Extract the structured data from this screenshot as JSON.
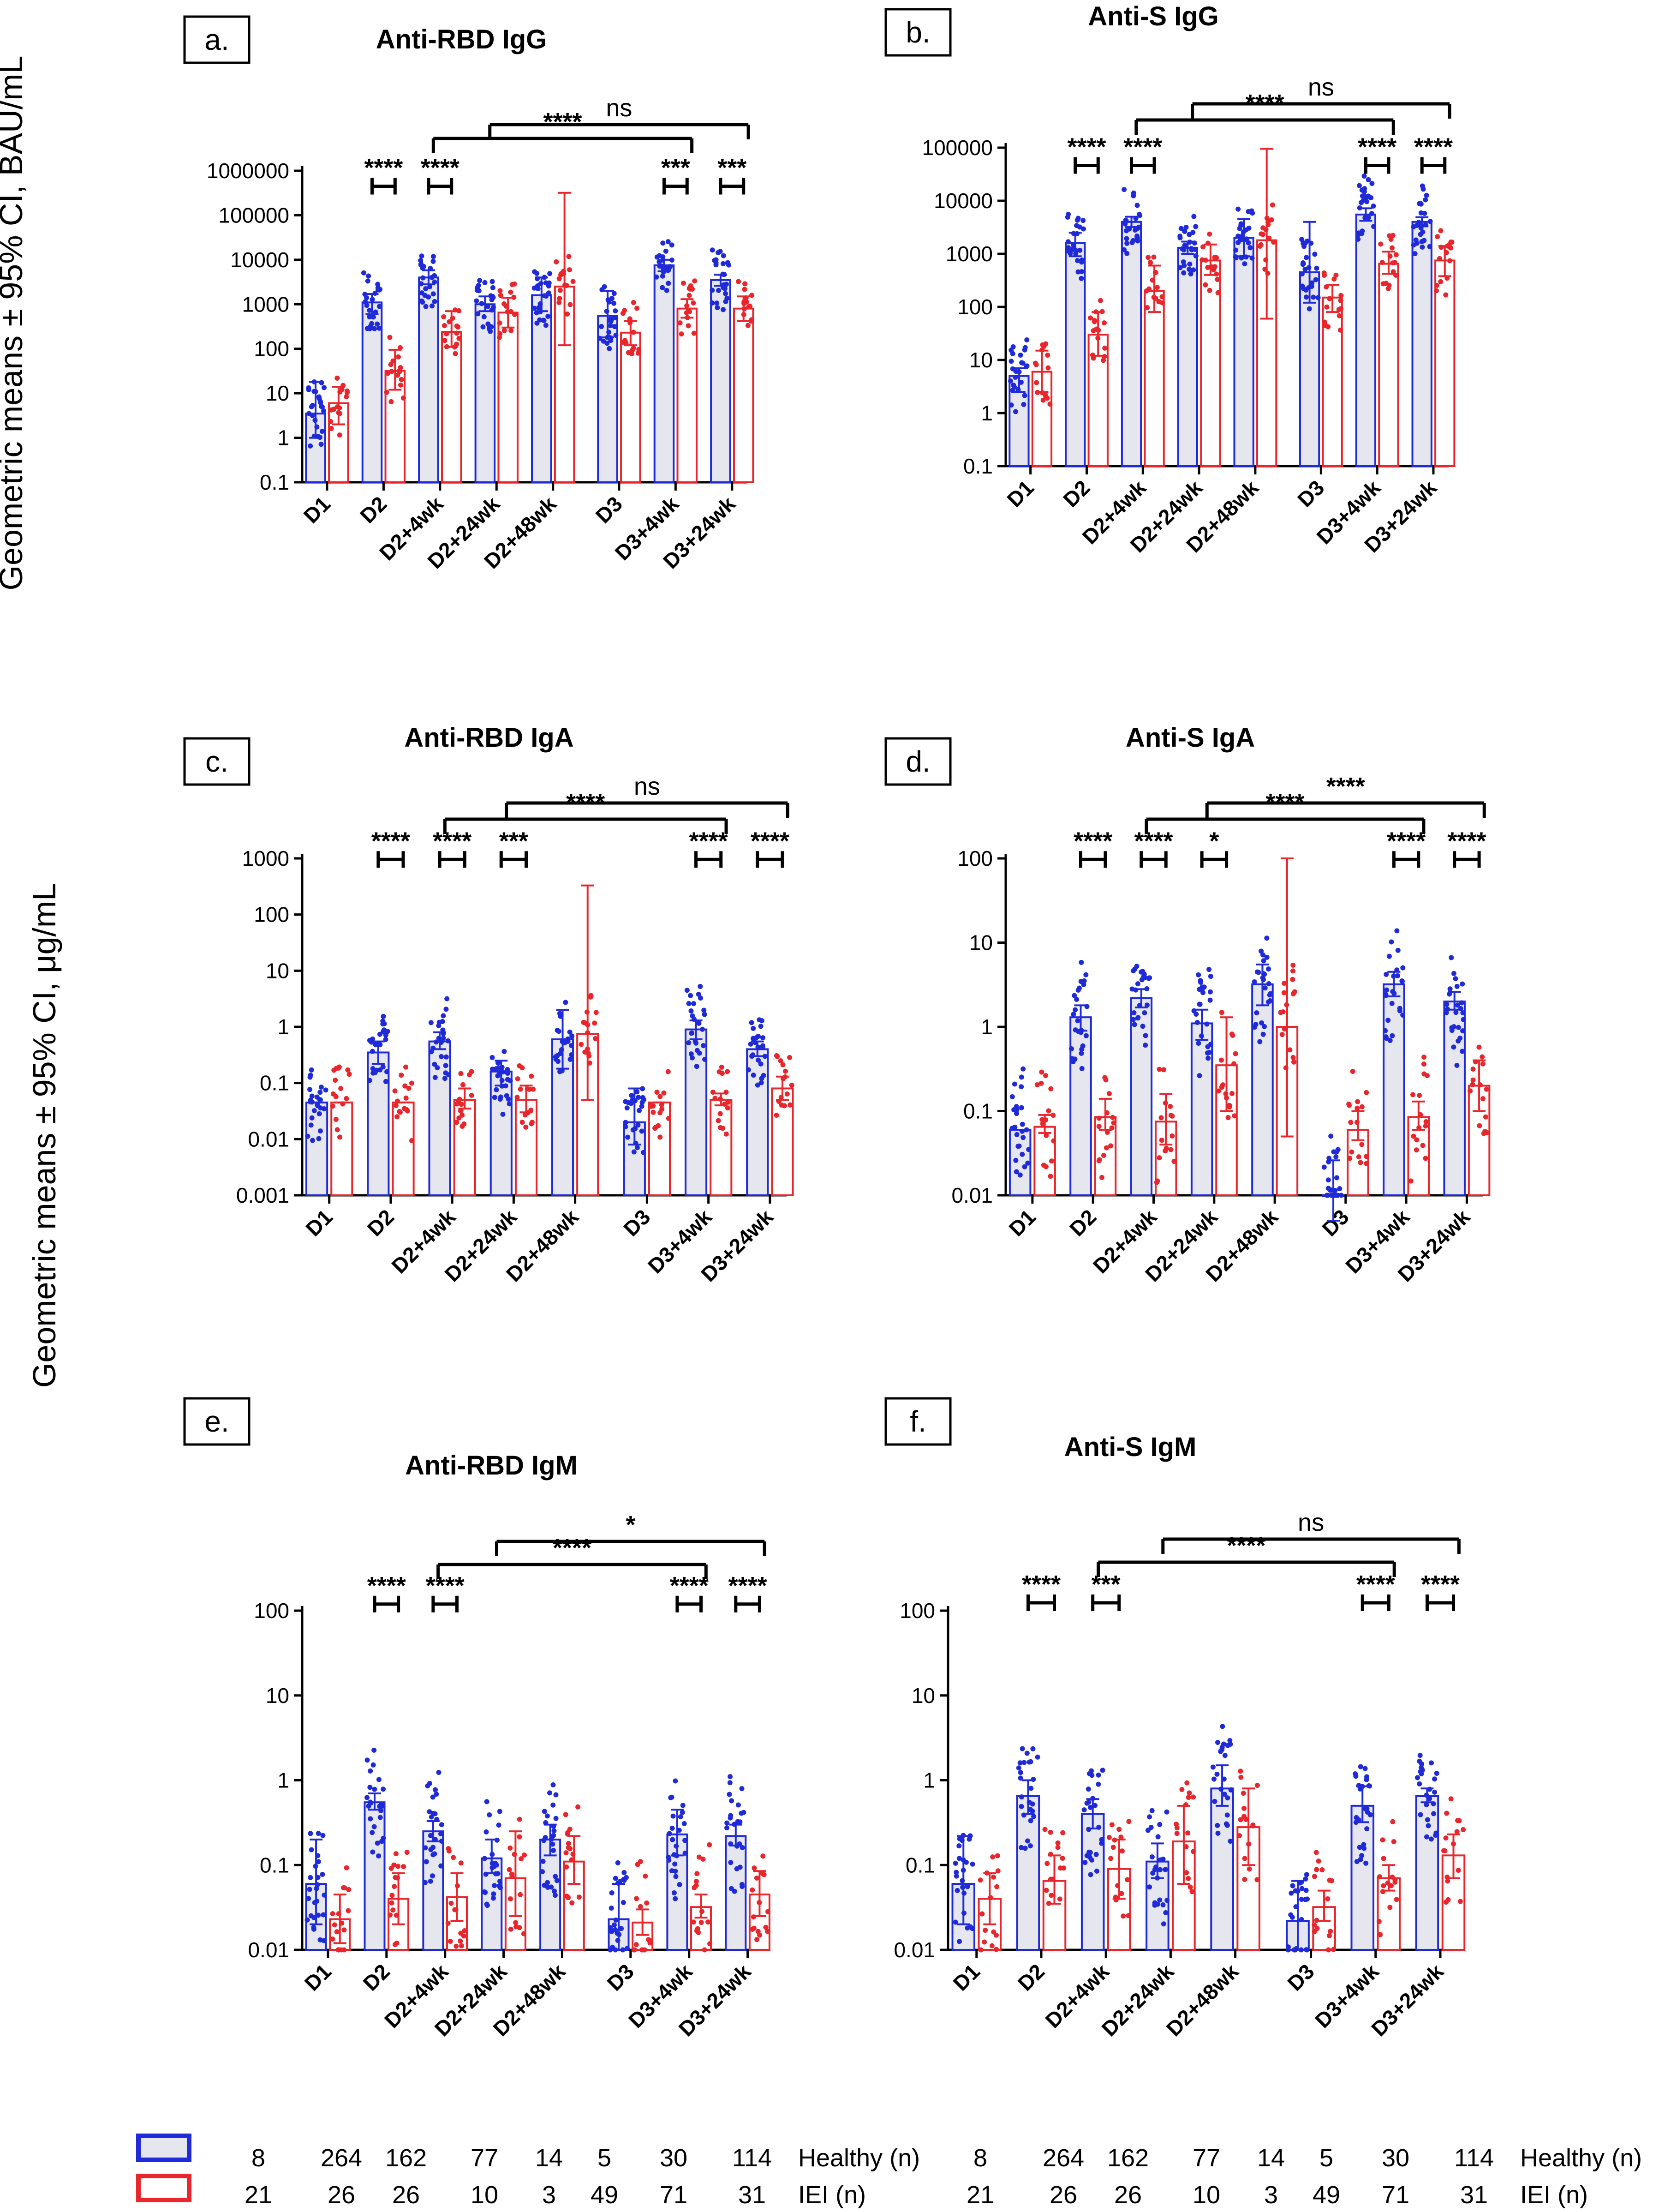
{
  "y_axis_labels": [
    "Geometric means ± 95% CI, BAU/mL",
    "Geometric means ± 95% CI, μg/mL"
  ],
  "colors": {
    "healthy": "#1f2ad8",
    "iei": "#e8262b",
    "healthy_fill": "#e6e6ee",
    "black": "#000000"
  },
  "legend": {
    "healthy_label": "Healthy (n)",
    "iei_label": "IEI (n)",
    "healthy_n": [
      "8",
      "264",
      "162",
      "77",
      "14",
      "5",
      "30",
      "114"
    ],
    "iei_n": [
      "21",
      "26",
      "26",
      "10",
      "3",
      "49",
      "71",
      "31"
    ]
  },
  "chart_data": [
    {
      "type": "bar",
      "panel": "a.",
      "title": "Anti-RBD IgG",
      "scale": "log",
      "ylim": [
        0.1,
        1000000
      ],
      "ticks": [
        "0.1",
        "1",
        "10",
        "100",
        "1000",
        "10000",
        "100000",
        "1000000"
      ],
      "categories": [
        "D1",
        "D2",
        "D2+4wk",
        "D2+24wk",
        "D2+48wk",
        "D3",
        "D3+4wk",
        "D3+24wk"
      ],
      "series": [
        {
          "name": "Healthy",
          "values": [
            3.5,
            1100,
            4000,
            1000,
            1600,
            550,
            7500,
            3500
          ],
          "ci_low": [
            1,
            600,
            2800,
            700,
            700,
            180,
            5500,
            2600
          ],
          "ci_high": [
            18,
            1700,
            5800,
            1500,
            4000,
            2000,
            10000,
            4600
          ]
        },
        {
          "name": "IEI",
          "values": [
            6,
            32,
            240,
            650,
            2500,
            230,
            800,
            800
          ],
          "ci_low": [
            2,
            12,
            110,
            300,
            120,
            120,
            500,
            420
          ],
          "ci_high": [
            14,
            95,
            700,
            1400,
            320000,
            420,
            1300,
            1500
          ]
        }
      ],
      "comparisons": [
        {
          "pair": [
            1,
            1
          ],
          "label": "****"
        },
        {
          "pair": [
            2,
            2
          ],
          "label": "****"
        },
        {
          "pair": [
            6,
            6
          ],
          "label": "***"
        },
        {
          "pair": [
            7,
            7
          ],
          "label": "***"
        }
      ],
      "long_comparisons": [
        {
          "from": 2,
          "to": 6,
          "label": "****"
        },
        {
          "from": 3,
          "to": 7,
          "label": "ns"
        }
      ]
    },
    {
      "type": "bar",
      "panel": "b.",
      "title": "Anti-S IgG",
      "scale": "log",
      "ylim": [
        0.1,
        100000
      ],
      "ticks": [
        "0.1",
        "1",
        "10",
        "100",
        "1000",
        "10000",
        "100000"
      ],
      "categories": [
        "D1",
        "D2",
        "D2+4wk",
        "D2+24wk",
        "D2+48wk",
        "D3",
        "D3+4wk",
        "D3+24wk"
      ],
      "series": [
        {
          "name": "Healthy",
          "values": [
            5,
            1600,
            4000,
            1300,
            2000,
            450,
            5500,
            4000
          ],
          "ci_low": [
            2.5,
            900,
            3200,
            1000,
            900,
            120,
            4200,
            3300
          ],
          "ci_high": [
            7,
            2500,
            5000,
            1700,
            4500,
            4000,
            7200,
            4900
          ]
        },
        {
          "name": "IEI",
          "values": [
            6,
            30,
            200,
            750,
            1800,
            150,
            650,
            750
          ],
          "ci_low": [
            2.5,
            12,
            80,
            400,
            60,
            80,
            420,
            380
          ],
          "ci_high": [
            15,
            80,
            600,
            1500,
            95000,
            260,
            1100,
            1400
          ]
        }
      ],
      "comparisons": [
        {
          "pair": [
            1,
            1
          ],
          "label": "****"
        },
        {
          "pair": [
            2,
            2
          ],
          "label": "****"
        },
        {
          "pair": [
            6,
            6
          ],
          "label": "****"
        },
        {
          "pair": [
            7,
            7
          ],
          "label": "****"
        }
      ],
      "long_comparisons": [
        {
          "from": 2,
          "to": 6,
          "label": "****"
        },
        {
          "from": 3,
          "to": 7,
          "label": "ns"
        }
      ]
    },
    {
      "type": "bar",
      "panel": "c.",
      "title": "Anti-RBD IgA",
      "scale": "log",
      "ylim": [
        0.001,
        1000
      ],
      "ticks": [
        "0.001",
        "0.01",
        "0.1",
        "1",
        "10",
        "100",
        "1000"
      ],
      "categories": [
        "D1",
        "D2",
        "D2+4wk",
        "D2+24wk",
        "D2+48wk",
        "D3",
        "D3+4wk",
        "D3+24wk"
      ],
      "series": [
        {
          "name": "Healthy",
          "values": [
            0.045,
            0.35,
            0.55,
            0.16,
            0.6,
            0.02,
            0.9,
            0.4
          ],
          "ci_low": [
            0.045,
            0.22,
            0.4,
            0.09,
            0.18,
            0.008,
            0.6,
            0.3
          ],
          "ci_high": [
            0.045,
            0.55,
            0.8,
            0.25,
            2,
            0.08,
            1.3,
            0.55
          ]
        },
        {
          "name": "IEI",
          "values": [
            0.045,
            0.045,
            0.05,
            0.05,
            0.75,
            0.045,
            0.05,
            0.08
          ],
          "ci_low": [
            0.045,
            0.045,
            0.035,
            0.03,
            0.05,
            0.045,
            0.04,
            0.05
          ],
          "ci_high": [
            0.045,
            0.045,
            0.08,
            0.09,
            330,
            0.045,
            0.065,
            0.13
          ]
        }
      ],
      "comparisons": [
        {
          "pair": [
            1,
            1
          ],
          "label": "****"
        },
        {
          "pair": [
            2,
            2
          ],
          "label": "****"
        },
        {
          "pair": [
            3,
            3
          ],
          "label": "***"
        },
        {
          "pair": [
            6,
            6
          ],
          "label": "****"
        },
        {
          "pair": [
            7,
            7
          ],
          "label": "****"
        }
      ],
      "long_comparisons": [
        {
          "from": 2,
          "to": 6,
          "label": "****"
        },
        {
          "from": 3,
          "to": 7,
          "label": "ns"
        }
      ]
    },
    {
      "type": "bar",
      "panel": "d.",
      "title": "Anti-S IgA",
      "scale": "log",
      "ylim": [
        0.01,
        100
      ],
      "ticks": [
        "0.01",
        "0.1",
        "1",
        "10",
        "100"
      ],
      "categories": [
        "D1",
        "D2",
        "D2+4wk",
        "D2+24wk",
        "D2+48wk",
        "D3",
        "D3+4wk",
        "D3+24wk"
      ],
      "series": [
        {
          "name": "Healthy",
          "values": [
            0.06,
            1.3,
            2.2,
            1.1,
            3.2,
            0.01,
            3.2,
            2
          ],
          "ci_low": [
            0.06,
            0.9,
            1.7,
            0.7,
            1.8,
            0.004,
            2.3,
            1.6
          ],
          "ci_high": [
            0.06,
            1.8,
            2.8,
            1.6,
            5.5,
            0.026,
            4.5,
            2.6
          ]
        },
        {
          "name": "IEI",
          "values": [
            0.065,
            0.085,
            0.075,
            0.35,
            1,
            0.06,
            0.085,
            0.2
          ],
          "ci_low": [
            0.055,
            0.06,
            0.04,
            0.1,
            0.05,
            0.045,
            0.06,
            0.1
          ],
          "ci_high": [
            0.09,
            0.14,
            0.16,
            1.3,
            100,
            0.1,
            0.13,
            0.4
          ]
        }
      ],
      "comparisons": [
        {
          "pair": [
            1,
            1
          ],
          "label": "****"
        },
        {
          "pair": [
            2,
            2
          ],
          "label": "****"
        },
        {
          "pair": [
            3,
            3
          ],
          "label": "*"
        },
        {
          "pair": [
            6,
            6
          ],
          "label": "****"
        },
        {
          "pair": [
            7,
            7
          ],
          "label": "****"
        }
      ],
      "long_comparisons": [
        {
          "from": 2,
          "to": 6,
          "label": "****"
        },
        {
          "from": 3,
          "to": 7,
          "label": "****"
        }
      ]
    },
    {
      "type": "bar",
      "panel": "e.",
      "title": "Anti-RBD IgM",
      "scale": "log",
      "ylim": [
        0.01,
        100
      ],
      "ticks": [
        "0.01",
        "0.1",
        "1",
        "10",
        "100"
      ],
      "categories": [
        "D1",
        "D2",
        "D2+4wk",
        "D2+24wk",
        "D2+48wk",
        "D3",
        "D3+4wk",
        "D3+24wk"
      ],
      "series": [
        {
          "name": "Healthy",
          "values": [
            0.06,
            0.55,
            0.25,
            0.12,
            0.2,
            0.023,
            0.23,
            0.22
          ],
          "ci_low": [
            0.02,
            0.45,
            0.19,
            0.08,
            0.13,
            0.01,
            0.13,
            0.17
          ],
          "ci_high": [
            0.2,
            0.7,
            0.33,
            0.2,
            0.3,
            0.06,
            0.45,
            0.3
          ]
        },
        {
          "name": "IEI",
          "values": [
            0.023,
            0.04,
            0.042,
            0.07,
            0.11,
            0.021,
            0.032,
            0.045
          ],
          "ci_low": [
            0.012,
            0.02,
            0.022,
            0.025,
            0.06,
            0.015,
            0.024,
            0.025
          ],
          "ci_high": [
            0.045,
            0.08,
            0.08,
            0.25,
            0.22,
            0.03,
            0.045,
            0.085
          ]
        }
      ],
      "comparisons": [
        {
          "pair": [
            1,
            1
          ],
          "label": "****"
        },
        {
          "pair": [
            2,
            2
          ],
          "label": "****"
        },
        {
          "pair": [
            6,
            6
          ],
          "label": "****"
        },
        {
          "pair": [
            7,
            7
          ],
          "label": "****"
        }
      ],
      "long_comparisons": [
        {
          "from": 2,
          "to": 6,
          "label": "****"
        },
        {
          "from": 3,
          "to": 7,
          "label": "*"
        }
      ]
    },
    {
      "type": "bar",
      "panel": "f.",
      "title": "Anti-S IgM",
      "scale": "log",
      "ylim": [
        0.01,
        100
      ],
      "ticks": [
        "0.01",
        "0.1",
        "1",
        "10",
        "100"
      ],
      "categories": [
        "D1",
        "D2",
        "D2+4wk",
        "D2+24wk",
        "D2+48wk",
        "D3",
        "D3+4wk",
        "D3+24wk"
      ],
      "series": [
        {
          "name": "Healthy",
          "values": [
            0.06,
            0.65,
            0.4,
            0.11,
            0.8,
            0.022,
            0.5,
            0.65
          ],
          "ci_low": [
            0.02,
            0.4,
            0.27,
            0.07,
            0.5,
            0.01,
            0.32,
            0.55
          ],
          "ci_high": [
            0.22,
            1,
            0.6,
            0.18,
            1.5,
            0.065,
            0.85,
            0.8
          ]
        },
        {
          "name": "IEI",
          "values": [
            0.04,
            0.065,
            0.09,
            0.19,
            0.28,
            0.032,
            0.07,
            0.13
          ],
          "ci_low": [
            0.02,
            0.035,
            0.04,
            0.06,
            0.1,
            0.022,
            0.05,
            0.07
          ],
          "ci_high": [
            0.08,
            0.13,
            0.2,
            0.5,
            0.8,
            0.05,
            0.1,
            0.23
          ]
        }
      ],
      "comparisons": [
        {
          "pair": [
            1,
            1
          ],
          "label": "****"
        },
        {
          "pair": [
            2,
            2
          ],
          "label": "***"
        },
        {
          "pair": [
            6,
            6
          ],
          "label": "****"
        },
        {
          "pair": [
            7,
            7
          ],
          "label": "****"
        }
      ],
      "long_comparisons": [
        {
          "from": 2,
          "to": 6,
          "label": "****"
        },
        {
          "from": 3,
          "to": 7,
          "label": "ns"
        }
      ]
    }
  ]
}
